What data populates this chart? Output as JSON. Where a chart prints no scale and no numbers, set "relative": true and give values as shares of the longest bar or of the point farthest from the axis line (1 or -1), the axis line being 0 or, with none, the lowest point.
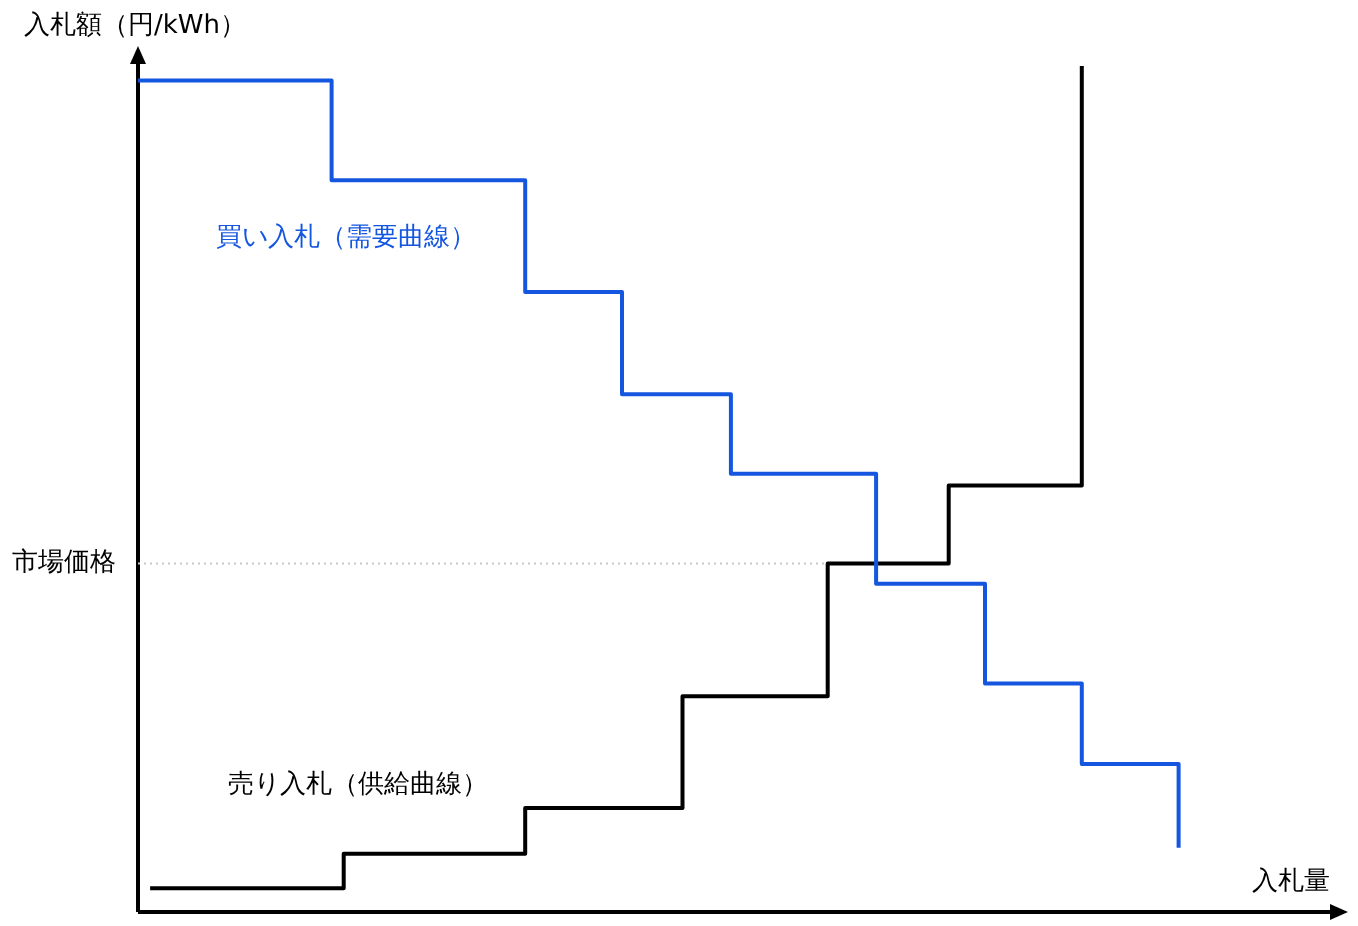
{
  "chart_data": {
    "type": "step",
    "relative": true,
    "xlabel": "入札量",
    "ylabel": "入札額（円/kWh）",
    "legend": false,
    "marker": "none",
    "categories": [
      null,
      null,
      null,
      null,
      null,
      null,
      null,
      null,
      null,
      null,
      null,
      null,
      null,
      null,
      null,
      null,
      null,
      null,
      null,
      null,
      null,
      null,
      null,
      null,
      null,
      null,
      null,
      null,
      null,
      null,
      null,
      null,
      null,
      null,
      null,
      null,
      null,
      null,
      null,
      null,
      null,
      null,
      null,
      null,
      null,
      null,
      null,
      null,
      null,
      null,
      null,
      null,
      null,
      null,
      null,
      null,
      null,
      null,
      null,
      null,
      null,
      null,
      null,
      null,
      null,
      null,
      null,
      null,
      null,
      null,
      null,
      null,
      null,
      null,
      null,
      null,
      null,
      null,
      null,
      null,
      null,
      null,
      null,
      null,
      null,
      null,
      null,
      null,
      null,
      null,
      null,
      null,
      null,
      null,
      null,
      null,
      null,
      null,
      null,
      null,
      null
    ],
    "series": [
      {
        "name": "買い入札（需要曲線）",
        "color": "#1456e0",
        "values": [
          0.983,
          0.983,
          0.983,
          0.983,
          0.983,
          0.983,
          0.983,
          0.983,
          0.983,
          0.983,
          0.983,
          0.983,
          0.983,
          0.983,
          0.983,
          0.983,
          0.865,
          0.865,
          0.865,
          0.865,
          0.865,
          0.865,
          0.865,
          0.865,
          0.865,
          0.865,
          0.865,
          0.865,
          0.865,
          0.865,
          0.865,
          0.865,
          0.733,
          0.733,
          0.733,
          0.733,
          0.733,
          0.733,
          0.733,
          0.733,
          0.612,
          0.612,
          0.612,
          0.612,
          0.612,
          0.612,
          0.612,
          0.612,
          0.612,
          0.518,
          0.518,
          0.518,
          0.518,
          0.518,
          0.518,
          0.518,
          0.518,
          0.518,
          0.518,
          0.518,
          0.518,
          0.388,
          0.388,
          0.388,
          0.388,
          0.388,
          0.388,
          0.388,
          0.388,
          0.388,
          0.27,
          0.27,
          0.27,
          0.27,
          0.27,
          0.27,
          0.27,
          0.27,
          0.175,
          0.175,
          0.175,
          0.175,
          0.175,
          0.175,
          0.175,
          0.175,
          0.076,
          null,
          null,
          null,
          null,
          null,
          null,
          null,
          null,
          null,
          null,
          null,
          null,
          null,
          null
        ]
      },
      {
        "name": "売り入札（供給曲線）",
        "color": "#000000",
        "values": [
          null,
          0.028,
          0.028,
          0.028,
          0.028,
          0.028,
          0.028,
          0.028,
          0.028,
          0.028,
          0.028,
          0.028,
          0.028,
          0.028,
          0.028,
          0.028,
          0.028,
          0.069,
          0.069,
          0.069,
          0.069,
          0.069,
          0.069,
          0.069,
          0.069,
          0.069,
          0.069,
          0.069,
          0.069,
          0.069,
          0.069,
          0.069,
          0.123,
          0.123,
          0.123,
          0.123,
          0.123,
          0.123,
          0.123,
          0.123,
          0.123,
          0.123,
          0.123,
          0.123,
          0.123,
          0.255,
          0.255,
          0.255,
          0.255,
          0.255,
          0.255,
          0.255,
          0.255,
          0.255,
          0.255,
          0.255,
          0.255,
          0.412,
          0.412,
          0.412,
          0.412,
          0.412,
          0.412,
          0.412,
          0.412,
          0.412,
          0.412,
          0.504,
          0.504,
          0.504,
          0.504,
          0.504,
          0.504,
          0.504,
          0.504,
          0.504,
          0.504,
          0.504,
          1,
          null,
          null,
          null,
          null,
          null,
          null,
          null,
          null,
          null,
          null,
          null,
          null,
          null,
          null,
          null,
          null,
          null,
          null,
          null,
          null,
          null,
          null
        ]
      }
    ],
    "ref_lines": [
      {
        "axis": "y",
        "value": 0.412,
        "label": "市場価格",
        "color": "#c8c8c8",
        "line_style": "dotted"
      }
    ]
  }
}
